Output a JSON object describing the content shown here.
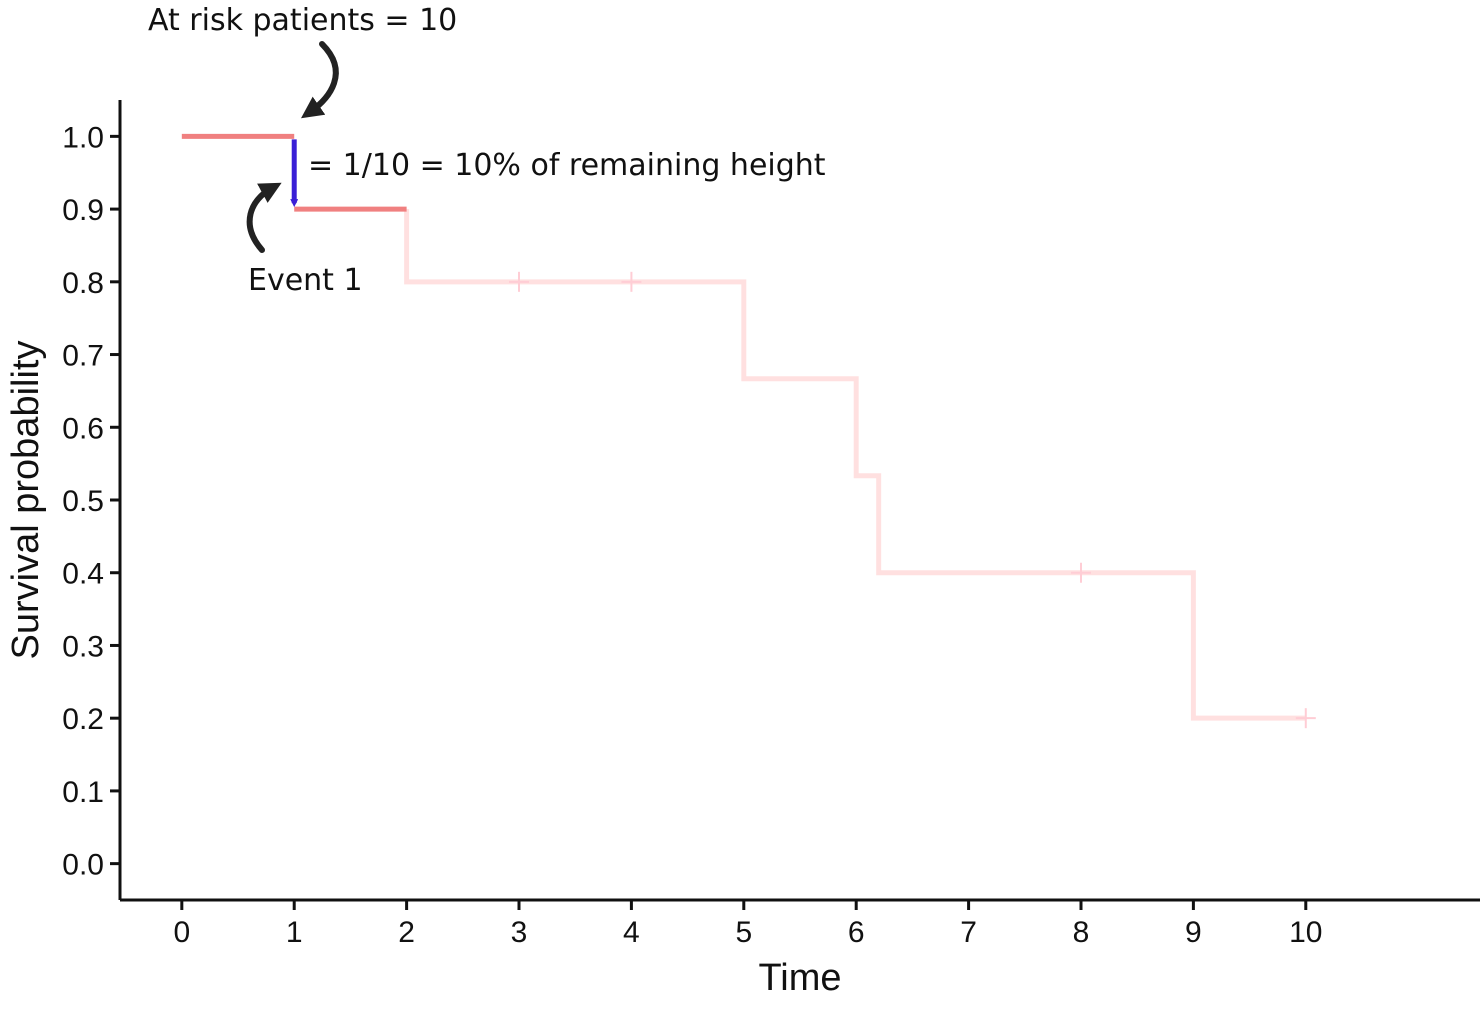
{
  "chart_data": {
    "type": "line",
    "xlabel": "Time",
    "ylabel": "Survival probability",
    "x_ticks": [
      0,
      1,
      2,
      3,
      4,
      5,
      6,
      7,
      8,
      9,
      10
    ],
    "y_ticks": [
      "0.0",
      "0.1",
      "0.2",
      "0.3",
      "0.4",
      "0.5",
      "0.6",
      "0.7",
      "0.8",
      "0.9",
      "1.0"
    ],
    "xlim": [
      -0.55,
      11.55
    ],
    "ylim": [
      -0.05,
      1.05
    ],
    "grid": false,
    "curve_color": "#F08080",
    "faded_curve_color": "#FFE0E0",
    "drop_color": "#3A1FD6",
    "highlighted_steps": [
      {
        "x": [
          0,
          1
        ],
        "y": 1.0
      },
      {
        "x": [
          1,
          2
        ],
        "y": 0.9
      }
    ],
    "faded_step_points": [
      {
        "x": 2,
        "y": 0.9
      },
      {
        "x": 2,
        "y": 0.8
      },
      {
        "x": 5,
        "y": 0.8
      },
      {
        "x": 5,
        "y": 0.6667
      },
      {
        "x": 6,
        "y": 0.6667
      },
      {
        "x": 6,
        "y": 0.5333
      },
      {
        "x": 6.2,
        "y": 0.5333
      },
      {
        "x": 6.2,
        "y": 0.4
      },
      {
        "x": 9,
        "y": 0.4
      },
      {
        "x": 9,
        "y": 0.2
      },
      {
        "x": 10,
        "y": 0.2
      }
    ],
    "censored": [
      {
        "x": 3,
        "y": 0.8
      },
      {
        "x": 4,
        "y": 0.8
      },
      {
        "x": 8,
        "y": 0.4
      },
      {
        "x": 10,
        "y": 0.2
      }
    ],
    "drop": {
      "x": 1,
      "from": 1.0,
      "to": 0.9
    },
    "annotations": {
      "at_risk": "At risk patients = 10",
      "fraction": "= 1/10 = 10% of remaining height",
      "event": "Event 1"
    }
  }
}
